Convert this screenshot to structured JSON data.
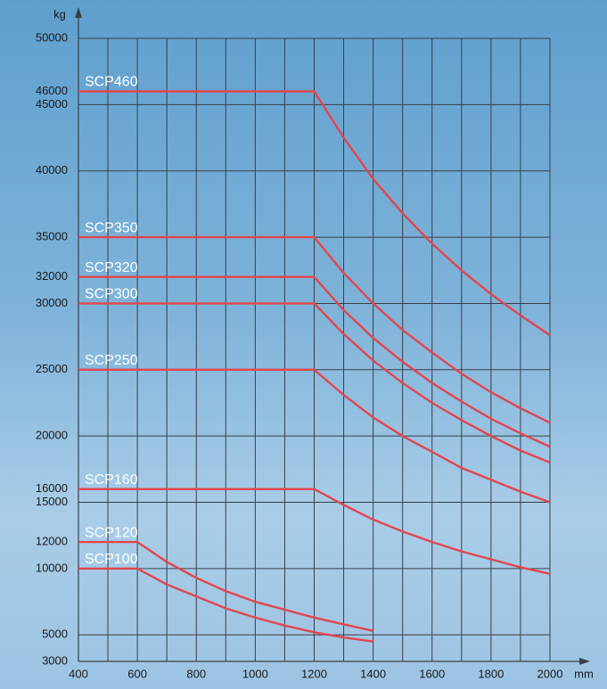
{
  "chart_data": {
    "type": "line",
    "y_label": "kg",
    "x_label": "mm",
    "x": [
      400,
      500,
      600,
      700,
      800,
      900,
      1000,
      1100,
      1200,
      1300,
      1400,
      1500,
      1600,
      1700,
      1800,
      1900,
      2000
    ],
    "xlim": [
      400,
      2000
    ],
    "xticks": [
      400,
      600,
      800,
      1000,
      1200,
      1400,
      1600,
      1800,
      2000
    ],
    "xgrid": [
      400,
      500,
      600,
      700,
      800,
      900,
      1000,
      1100,
      1200,
      1300,
      1400,
      1500,
      1600,
      1700,
      1800,
      1900,
      2000
    ],
    "ylim": [
      3000,
      50000
    ],
    "yticks": [
      3000,
      5000,
      10000,
      12000,
      15000,
      16000,
      20000,
      25000,
      30000,
      32000,
      35000,
      40000,
      45000,
      46000,
      50000
    ],
    "ygrid": [
      3000,
      5000,
      10000,
      15000,
      20000,
      25000,
      30000,
      35000,
      40000,
      45000,
      50000
    ],
    "grid": true,
    "series": [
      {
        "name": "SCP460",
        "color": "#e2464c",
        "values": [
          46000,
          46000,
          46000,
          46000,
          46000,
          46000,
          46000,
          46000,
          46000,
          42500,
          39400,
          36800,
          34500,
          32500,
          30700,
          29100,
          27600
        ]
      },
      {
        "name": "SCP350",
        "color": "#e2464c",
        "values": [
          35000,
          35000,
          35000,
          35000,
          35000,
          35000,
          35000,
          35000,
          35000,
          32300,
          30000,
          28000,
          26300,
          24700,
          23300,
          22100,
          21000
        ]
      },
      {
        "name": "SCP320",
        "color": "#e2464c",
        "values": [
          32000,
          32000,
          32000,
          32000,
          32000,
          32000,
          32000,
          32000,
          32000,
          29500,
          27400,
          25600,
          24000,
          22600,
          21300,
          20200,
          19200
        ]
      },
      {
        "name": "SCP300",
        "color": "#e2464c",
        "values": [
          30000,
          30000,
          30000,
          30000,
          30000,
          30000,
          30000,
          30000,
          30000,
          27700,
          25700,
          24000,
          22500,
          21200,
          20000,
          18900,
          18000
        ]
      },
      {
        "name": "SCP250",
        "color": "#e2464c",
        "values": [
          25000,
          25000,
          25000,
          25000,
          25000,
          25000,
          25000,
          25000,
          25000,
          23100,
          21400,
          20000,
          18800,
          17600,
          16700,
          15800,
          15000
        ]
      },
      {
        "name": "SCP160",
        "color": "#e2464c",
        "values": [
          16000,
          16000,
          16000,
          16000,
          16000,
          16000,
          16000,
          16000,
          16000,
          14800,
          13700,
          12800,
          12000,
          11300,
          10700,
          10100,
          9600
        ]
      },
      {
        "name": "SCP120",
        "color": "#e2464c",
        "values": [
          12000,
          12000,
          12000,
          10500,
          9300,
          8300,
          7500,
          6900,
          6300,
          5800,
          5300,
          null,
          null,
          null,
          null,
          null,
          null
        ]
      },
      {
        "name": "SCP100",
        "color": "#e2464c",
        "values": [
          10000,
          10000,
          10000,
          8800,
          7900,
          7000,
          6300,
          5700,
          5200,
          4800,
          4500,
          null,
          null,
          null,
          null,
          null,
          null
        ]
      }
    ]
  }
}
